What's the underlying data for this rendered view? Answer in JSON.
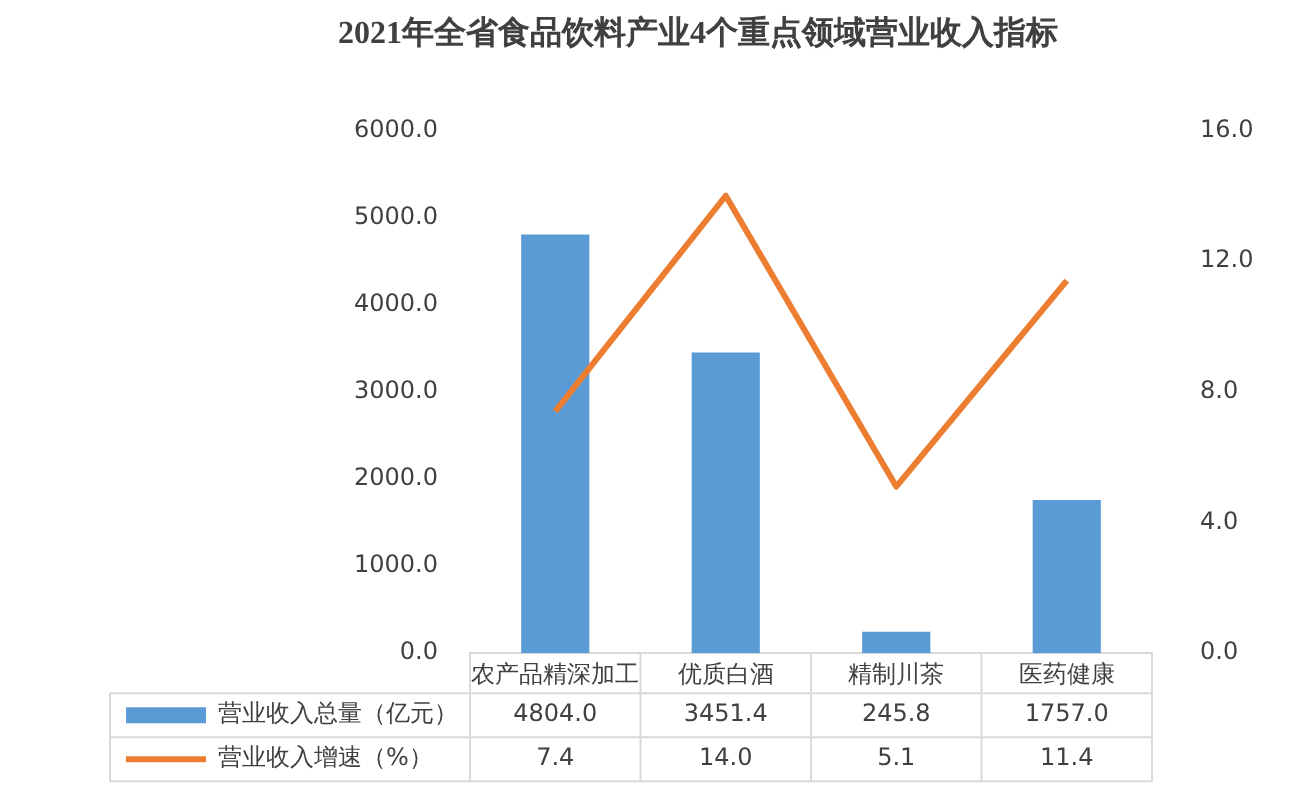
{
  "chart_data": {
    "type": "bar",
    "title": "2021年全省食品饮料产业4个重点领域营业收入指标",
    "categories": [
      "农产品精深加工",
      "优质白酒",
      "精制川茶",
      "医药健康"
    ],
    "series": [
      {
        "name": "营业收入总量（亿元）",
        "color": "#5b9bd5",
        "values": [
          4804.0,
          3451.4,
          245.8,
          1757.0
        ],
        "value_labels": [
          "4804.0",
          "3451.4",
          "245.8",
          "1757.0"
        ]
      },
      {
        "name": "营业收入增速（%）",
        "type": "line",
        "axis": "y2",
        "color": "#ed7d31",
        "values": [
          7.4,
          14.0,
          5.1,
          11.4
        ],
        "value_labels": [
          "7.4",
          "14.0",
          "5.1",
          "11.4"
        ]
      }
    ],
    "ylim": [
      0,
      6000
    ],
    "yticks": [
      {
        "value": 0,
        "label": "0.0"
      },
      {
        "value": 1000,
        "label": "1000.0"
      },
      {
        "value": 2000,
        "label": "2000.0"
      },
      {
        "value": 3000,
        "label": "3000.0"
      },
      {
        "value": 4000,
        "label": "4000.0"
      },
      {
        "value": 5000,
        "label": "5000.0"
      },
      {
        "value": 6000,
        "label": "6000.0"
      }
    ],
    "y2lim": [
      0,
      16
    ],
    "y2ticks": [
      {
        "value": 0,
        "label": "0.0"
      },
      {
        "value": 4,
        "label": "4.0"
      },
      {
        "value": 8,
        "label": "8.0"
      },
      {
        "value": 12,
        "label": "12.0"
      },
      {
        "value": 16,
        "label": "16.0"
      }
    ],
    "grid": false,
    "legend": "bottom",
    "marker": "none"
  }
}
